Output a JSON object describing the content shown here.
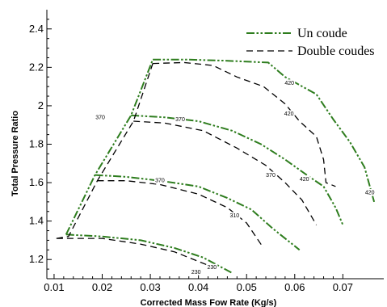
{
  "chart_data": {
    "type": "line",
    "xlabel": "Corrected Mass Fow Rate (Kg/s)",
    "ylabel": "Total Pressure Ratio",
    "xlim": [
      0.0085,
      0.0785
    ],
    "ylim": [
      1.1,
      2.5
    ],
    "xticks": [
      "0.01",
      "0.02",
      "0.03",
      "0.04",
      "0.05",
      "0.06",
      "0.07"
    ],
    "yticks": [
      "1.2",
      "1.4",
      "1.6",
      "1.8",
      "2",
      "2.2",
      "2.4"
    ],
    "legend_position": "top-right",
    "colors": {
      "un_coude": "#2e7d1e",
      "double_coudes": "#000000"
    },
    "series": [
      {
        "name": "Un coude",
        "style": "dash-dot-dot",
        "lines": [
          {
            "speed": "230",
            "points": [
              [
                0.0125,
                1.33
              ],
              [
                0.02,
                1.32
              ],
              [
                0.028,
                1.3
              ],
              [
                0.035,
                1.26
              ],
              [
                0.041,
                1.21
              ],
              [
                0.047,
                1.13
              ]
            ]
          },
          {
            "speed": "310",
            "points": [
              [
                0.0185,
                1.64
              ],
              [
                0.025,
                1.63
              ],
              [
                0.032,
                1.61
              ],
              [
                0.04,
                1.58
              ],
              [
                0.046,
                1.52
              ],
              [
                0.051,
                1.46
              ],
              [
                0.0555,
                1.36
              ],
              [
                0.061,
                1.25
              ]
            ]
          },
          {
            "speed": "370",
            "points": [
              [
                0.026,
                1.95
              ],
              [
                0.033,
                1.94
              ],
              [
                0.04,
                1.92
              ],
              [
                0.047,
                1.87
              ],
              [
                0.053,
                1.8
              ],
              [
                0.058,
                1.72
              ],
              [
                0.0625,
                1.64
              ],
              [
                0.066,
                1.58
              ],
              [
                0.0685,
                1.47
              ],
              [
                0.07,
                1.38
              ]
            ]
          },
          {
            "speed": "420",
            "points": [
              [
                0.0305,
                2.24
              ],
              [
                0.038,
                2.24
              ],
              [
                0.045,
                2.235
              ],
              [
                0.0545,
                2.225
              ],
              [
                0.058,
                2.15
              ],
              [
                0.0645,
                2.06
              ],
              [
                0.068,
                1.93
              ],
              [
                0.0715,
                1.81
              ],
              [
                0.0745,
                1.68
              ],
              [
                0.0765,
                1.5
              ]
            ]
          }
        ]
      },
      {
        "name": "Double coudes",
        "style": "dashed",
        "lines": [
          {
            "speed": "230",
            "points": [
              [
                0.0105,
                1.31
              ],
              [
                0.02,
                1.31
              ],
              [
                0.028,
                1.28
              ],
              [
                0.035,
                1.24
              ],
              [
                0.04,
                1.19
              ],
              [
                0.043,
                1.16
              ]
            ]
          },
          {
            "speed": "310",
            "points": [
              [
                0.019,
                1.61
              ],
              [
                0.025,
                1.61
              ],
              [
                0.032,
                1.59
              ],
              [
                0.04,
                1.54
              ],
              [
                0.046,
                1.47
              ],
              [
                0.05,
                1.39
              ],
              [
                0.0535,
                1.26
              ]
            ]
          },
          {
            "speed": "370",
            "points": [
              [
                0.0265,
                1.92
              ],
              [
                0.033,
                1.91
              ],
              [
                0.041,
                1.87
              ],
              [
                0.048,
                1.78
              ],
              [
                0.054,
                1.69
              ],
              [
                0.058,
                1.6
              ],
              [
                0.0615,
                1.51
              ],
              [
                0.0645,
                1.38
              ]
            ]
          },
          {
            "speed": "420",
            "points": [
              [
                0.0305,
                2.22
              ],
              [
                0.037,
                2.225
              ],
              [
                0.043,
                2.21
              ],
              [
                0.048,
                2.15
              ],
              [
                0.0535,
                2.1
              ],
              [
                0.058,
                2.01
              ],
              [
                0.061,
                1.92
              ],
              [
                0.0645,
                1.84
              ],
              [
                0.066,
                1.72
              ],
              [
                0.0665,
                1.6
              ],
              [
                0.0685,
                1.58
              ]
            ]
          }
        ]
      },
      {
        "name": "",
        "style": "dashed",
        "role": "surge line (Double coudes)",
        "points": [
          [
            0.0105,
            1.31
          ],
          [
            0.013,
            1.32
          ],
          [
            0.019,
            1.61
          ],
          [
            0.0265,
            1.92
          ],
          [
            0.0305,
            2.22
          ]
        ]
      },
      {
        "name": "",
        "style": "dash-dot-dot",
        "role": "surge line (Un coude)",
        "points": [
          [
            0.0125,
            1.33
          ],
          [
            0.0185,
            1.64
          ],
          [
            0.026,
            1.95
          ],
          [
            0.0305,
            2.24
          ]
        ]
      }
    ],
    "annotations": [
      {
        "text": "230",
        "x": 0.0428,
        "y": 1.16,
        "series": "Un coude"
      },
      {
        "text": "230",
        "x": 0.0395,
        "y": 1.135,
        "series": "Double coudes"
      },
      {
        "text": "370",
        "x": 0.032,
        "y": 1.612,
        "series": "Un coude"
      },
      {
        "text": "310",
        "x": 0.0475,
        "y": 1.43,
        "series": "Double coudes"
      },
      {
        "text": "370",
        "x": 0.0196,
        "y": 1.94,
        "series": "Double coudes"
      },
      {
        "text": "370",
        "x": 0.0362,
        "y": 1.93,
        "series": "Un coude"
      },
      {
        "text": "370",
        "x": 0.055,
        "y": 1.64,
        "series": "Double coudes"
      },
      {
        "text": "420",
        "x": 0.0589,
        "y": 2.12,
        "series": "Un coude"
      },
      {
        "text": "420",
        "x": 0.0588,
        "y": 1.96,
        "series": "Double coudes"
      },
      {
        "text": "420",
        "x": 0.062,
        "y": 1.62,
        "series": "Un coude"
      },
      {
        "text": "420",
        "x": 0.0756,
        "y": 1.55,
        "series": "Un coude"
      }
    ]
  }
}
